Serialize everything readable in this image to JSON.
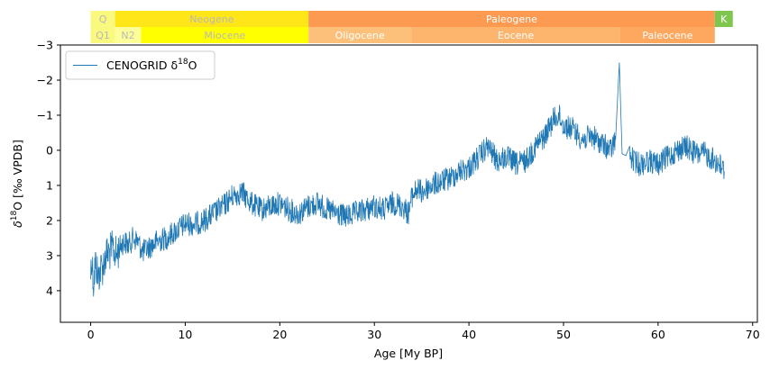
{
  "chart_data": {
    "type": "line",
    "title": "",
    "xlabel": "Age [My BP]",
    "ylabel_main": "δ",
    "ylabel_sup": "18",
    "ylabel_rest": "O [‰ VPDB]",
    "xlim": [
      -3.2,
      70.5
    ],
    "ylim": [
      4.9,
      -3.0
    ],
    "y_inverted": true,
    "grid": false,
    "legend_position": "upper left",
    "x_ticks": [
      0,
      10,
      20,
      30,
      40,
      50,
      60,
      70
    ],
    "y_ticks": [
      -3,
      -2,
      -1,
      0,
      1,
      2,
      3,
      4
    ],
    "y_tick_labels": [
      "−3",
      "−2",
      "−1",
      "0",
      "1",
      "2",
      "3",
      "4"
    ],
    "colors": {
      "series": "#1f77b4"
    },
    "series": [
      {
        "name": "CENOGRID δ18O",
        "legend_main": "CENOGRID δ",
        "legend_sup": "18",
        "legend_rest": "O",
        "color": "#1f77b4",
        "x": [
          0,
          0.1,
          0.3,
          0.5,
          0.8,
          1.0,
          1.3,
          1.6,
          2.0,
          2.4,
          2.7,
          3.0,
          3.5,
          4.0,
          4.5,
          5.0,
          5.5,
          6.0,
          7.0,
          8.0,
          9.0,
          10.0,
          11.0,
          12.0,
          13.0,
          14.0,
          15.0,
          16.0,
          17.0,
          18.0,
          19.0,
          20.0,
          21.0,
          22.0,
          23.0,
          24.0,
          25.0,
          26.0,
          27.0,
          28.0,
          29.0,
          30.0,
          31.0,
          32.0,
          33.0,
          33.6,
          34.0,
          34.5,
          35.0,
          36.0,
          37.0,
          38.0,
          39.0,
          40.0,
          41.0,
          42.0,
          43.0,
          44.0,
          45.0,
          46.0,
          47.0,
          48.0,
          49.0,
          49.5,
          50.0,
          51.0,
          52.0,
          53.0,
          54.0,
          55.0,
          55.5,
          55.9,
          56.2,
          57.0,
          58.0,
          59.0,
          60.0,
          61.0,
          62.0,
          63.0,
          64.0,
          65.0,
          66.0,
          66.5,
          67.0
        ],
        "y": [
          3.5,
          3.0,
          3.8,
          3.2,
          3.6,
          3.4,
          3.3,
          3.0,
          2.9,
          2.8,
          3.0,
          2.8,
          2.6,
          2.7,
          2.5,
          2.6,
          2.9,
          2.8,
          2.6,
          2.5,
          2.3,
          2.1,
          2.1,
          2.0,
          1.8,
          1.6,
          1.3,
          1.2,
          1.5,
          1.7,
          1.6,
          1.5,
          1.7,
          1.8,
          1.6,
          1.5,
          1.7,
          1.8,
          1.9,
          1.8,
          1.7,
          1.6,
          1.7,
          1.5,
          1.6,
          1.8,
          1.3,
          1.1,
          1.2,
          1.0,
          0.9,
          0.8,
          0.6,
          0.5,
          0.2,
          -0.1,
          0.3,
          0.2,
          0.4,
          0.3,
          -0.1,
          -0.4,
          -0.9,
          -1.0,
          -0.7,
          -0.6,
          -0.3,
          -0.4,
          -0.2,
          0.0,
          -0.3,
          -2.5,
          0.1,
          0.2,
          0.4,
          0.3,
          0.4,
          0.2,
          0.0,
          -0.1,
          0.1,
          0.1,
          0.3,
          0.4,
          0.6
        ],
        "noise_envelope": 0.35
      }
    ],
    "timescale": {
      "periods": [
        {
          "label": "Q",
          "start": 0,
          "end": 2.58,
          "color": "#f9f97f"
        },
        {
          "label": "Neogene",
          "start": 2.58,
          "end": 23.03,
          "color": "#ffe619"
        },
        {
          "label": "Paleogene",
          "start": 23.03,
          "end": 66.0,
          "color": "#fd9a52"
        },
        {
          "label": "K",
          "start": 66.0,
          "end": 67.9,
          "color": "#7fc64e"
        }
      ],
      "epochs": [
        {
          "label": "Q1",
          "start": 0,
          "end": 2.58,
          "color": "#f9f97f"
        },
        {
          "label": "N2",
          "start": 2.58,
          "end": 5.33,
          "color": "#ffff99"
        },
        {
          "label": "Miocene",
          "start": 5.33,
          "end": 23.03,
          "color": "#ffff00"
        },
        {
          "label": "Oligocene",
          "start": 23.03,
          "end": 33.9,
          "color": "#fdc07a"
        },
        {
          "label": "Eocene",
          "start": 33.9,
          "end": 56.0,
          "color": "#fdb46c"
        },
        {
          "label": "Paleocene",
          "start": 56.0,
          "end": 66.0,
          "color": "#fda75f"
        }
      ]
    }
  }
}
